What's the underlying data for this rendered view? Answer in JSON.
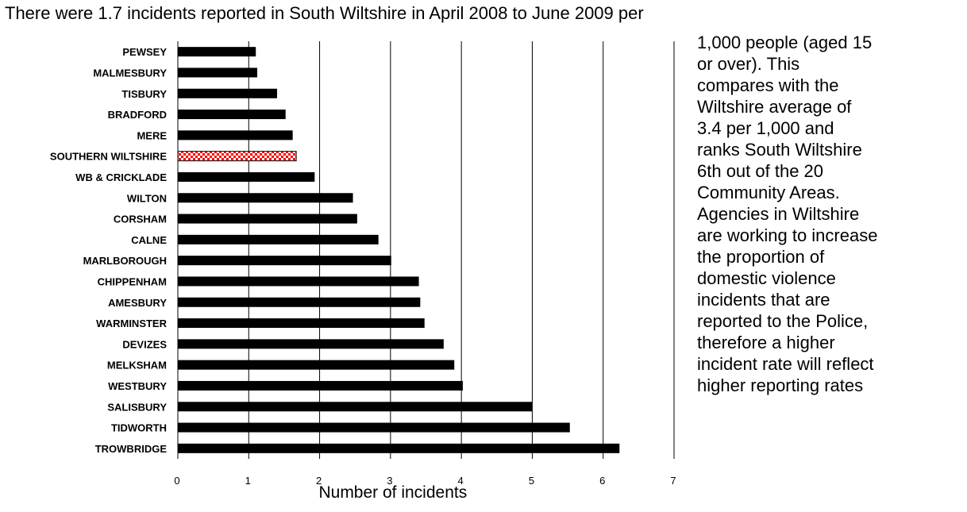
{
  "text": {
    "intro": "There were 1.7 incidents reported in South Wiltshire in April 2008 to June 2009 per",
    "side_lines": [
      "1,000 people (aged 15",
      "or over).  This",
      "compares with the",
      "Wiltshire average of",
      "3.4 per 1,000 and",
      "ranks South Wiltshire",
      "6th out of the 20",
      "Community Areas.",
      "Agencies in Wiltshire",
      "are working to increase",
      "the proportion of",
      "domestic violence",
      "incidents that are",
      "reported to the Police,",
      "therefore a higher",
      "incident rate will reflect",
      "higher reporting rates"
    ]
  },
  "chart_data": {
    "type": "bar",
    "orientation": "horizontal",
    "title": "",
    "xlabel": "Number of incidents",
    "ylabel": "",
    "xlim": [
      0,
      7
    ],
    "xticks": [
      0,
      1,
      2,
      3,
      4,
      5,
      6,
      7
    ],
    "grid": "vertical",
    "categories": [
      "PEWSEY",
      "MALMESBURY",
      "TISBURY",
      "BRADFORD",
      "MERE",
      "SOUTHERN WILTSHIRE",
      "WB & CRICKLADE",
      "WILTON",
      "CORSHAM",
      "CALNE",
      "MARLBOROUGH",
      "CHIPPENHAM",
      "AMESBURY",
      "WARMINSTER",
      "DEVIZES",
      "MELKSHAM",
      "WESTBURY",
      "SALISBURY",
      "TIDWORTH",
      "TROWBRIDGE"
    ],
    "values": [
      1.1,
      1.12,
      1.4,
      1.52,
      1.62,
      1.67,
      1.93,
      2.47,
      2.53,
      2.83,
      3.01,
      3.4,
      3.42,
      3.48,
      3.75,
      3.9,
      4.02,
      5.0,
      5.53,
      6.23
    ],
    "highlight_category": "SOUTHERN WILTSHIRE",
    "colors": {
      "bar": "#000000",
      "highlight_a": "#ff0000",
      "highlight_b": "#ffffff",
      "grid": "#000000"
    }
  }
}
